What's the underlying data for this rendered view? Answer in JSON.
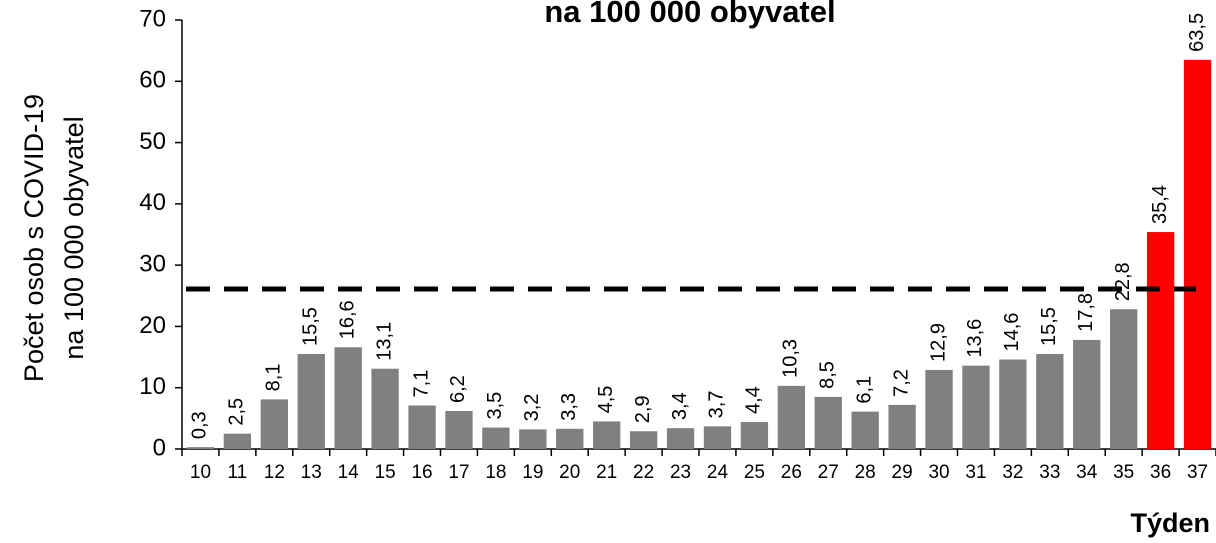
{
  "chart_data": {
    "type": "bar",
    "title": "na 100 000 obyvatel",
    "y_label": [
      "Počet osob s COVID-19",
      "na 100 000 obyvatel"
    ],
    "x_label": "Týden",
    "categories": [
      "10",
      "11",
      "12",
      "13",
      "14",
      "15",
      "16",
      "17",
      "18",
      "19",
      "20",
      "21",
      "22",
      "23",
      "24",
      "25",
      "26",
      "27",
      "28",
      "29",
      "30",
      "31",
      "32",
      "33",
      "34",
      "35",
      "36",
      "37"
    ],
    "values": [
      0.3,
      2.5,
      8.1,
      15.5,
      16.6,
      13.1,
      7.1,
      6.2,
      3.5,
      3.2,
      3.3,
      4.5,
      2.9,
      3.4,
      3.7,
      4.4,
      10.3,
      8.5,
      6.1,
      7.2,
      12.9,
      13.6,
      14.6,
      15.5,
      17.8,
      22.8,
      35.4,
      63.5
    ],
    "value_labels": [
      "0,3",
      "2,5",
      "8,1",
      "15,5",
      "16,6",
      "13,1",
      "7,1",
      "6,2",
      "3,5",
      "3,2",
      "3,3",
      "4,5",
      "2,9",
      "3,4",
      "3,7",
      "4,4",
      "10,3",
      "8,5",
      "6,1",
      "7,2",
      "12,9",
      "13,6",
      "14,6",
      "15,5",
      "17,8",
      "22,8",
      "35,4",
      "63,5"
    ],
    "colors": [
      "#808080",
      "#808080",
      "#808080",
      "#808080",
      "#808080",
      "#808080",
      "#808080",
      "#808080",
      "#808080",
      "#808080",
      "#808080",
      "#808080",
      "#808080",
      "#808080",
      "#808080",
      "#808080",
      "#808080",
      "#808080",
      "#808080",
      "#808080",
      "#808080",
      "#808080",
      "#808080",
      "#808080",
      "#808080",
      "#808080",
      "#ff0000",
      "#ff0000"
    ],
    "hline": 26.1,
    "ylim": [
      0,
      70
    ],
    "yticks": [
      0,
      10,
      20,
      30,
      40,
      50,
      60,
      70
    ]
  }
}
